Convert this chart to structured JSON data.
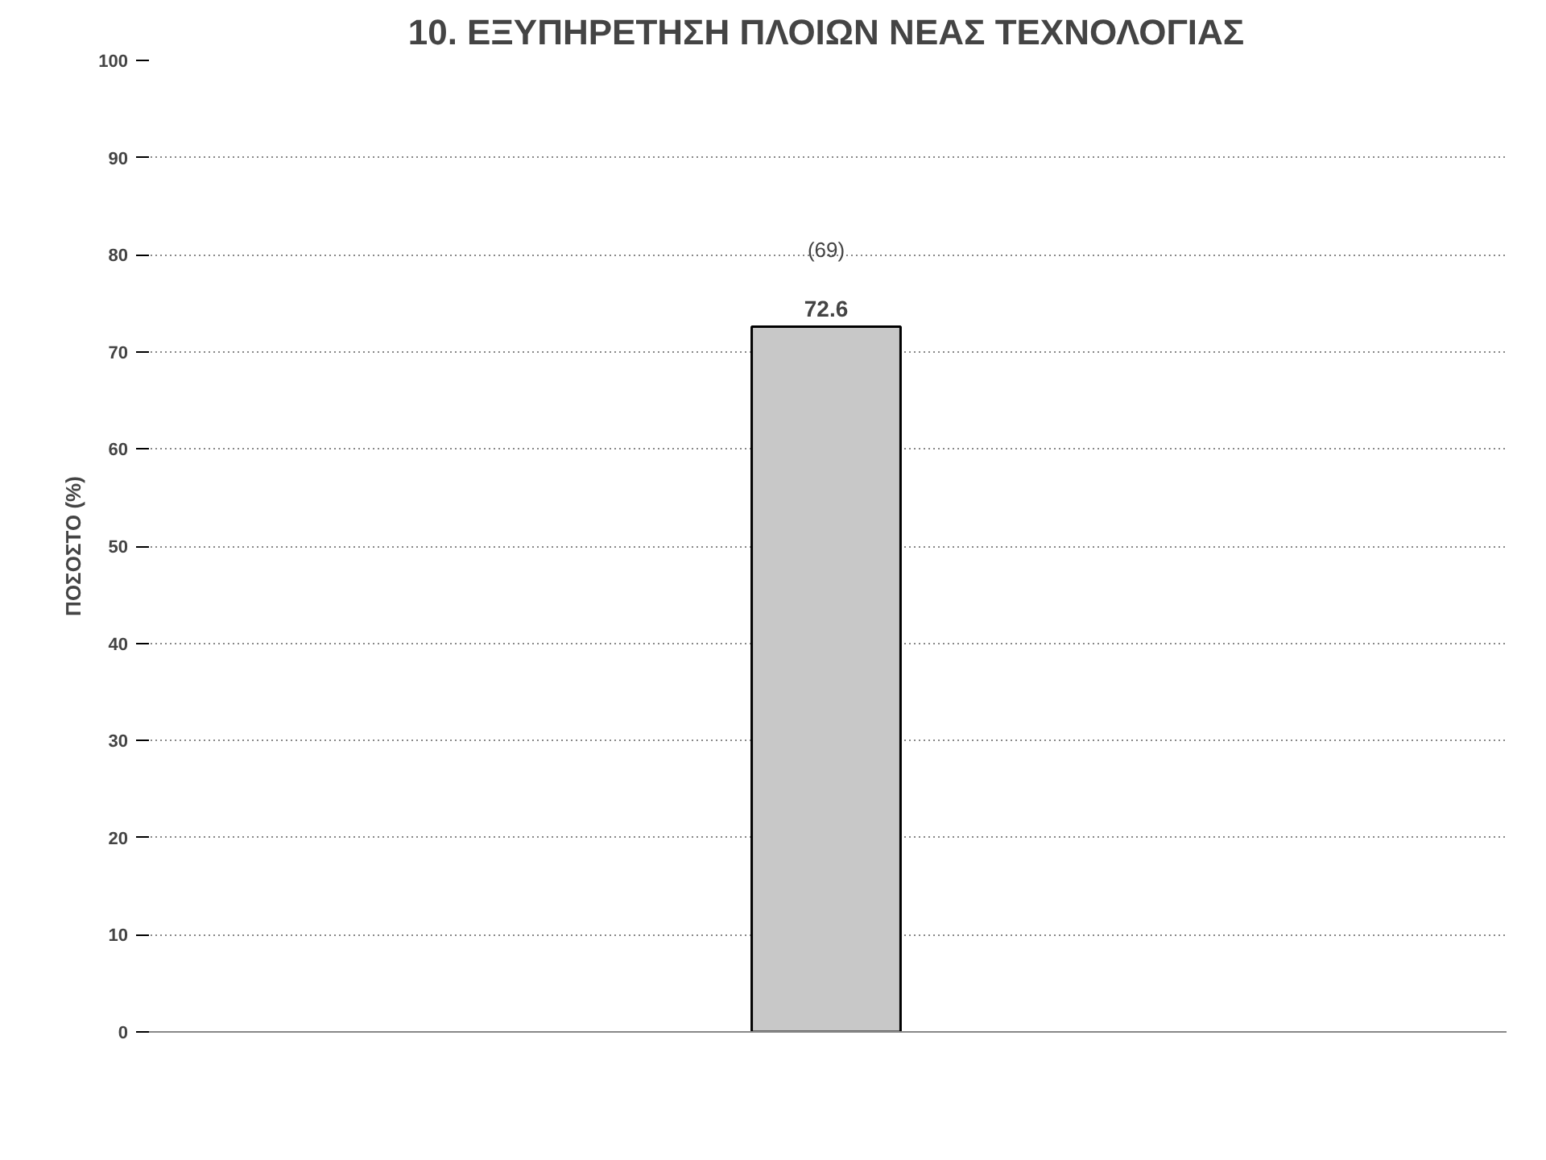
{
  "chart_data": {
    "type": "bar",
    "title": "10. ΕΞΥΠΗΡΕΤΗΣΗ ΠΛΟΙΩΝ ΝΕΑΣ ΤΕΧΝΟΛΟΓΙΑΣ",
    "ylabel": "ΠΟΣΟΣΤΟ (%)",
    "categories": [
      null
    ],
    "values": [
      72.6
    ],
    "color": "#c8c8c8",
    "ylim": [
      0,
      100
    ],
    "yticks": [
      0,
      10,
      20,
      30,
      40,
      50,
      60,
      70,
      80,
      90,
      100
    ],
    "grid": "y",
    "data_labels": true,
    "annotations": [
      "(69)"
    ]
  }
}
